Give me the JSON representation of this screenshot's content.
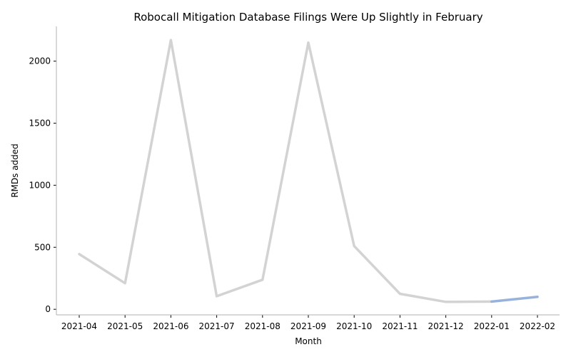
{
  "chart_data": {
    "type": "line",
    "title": "Robocall Mitigation Database Filings Were Up Slightly in February",
    "xlabel": "Month",
    "ylabel": "RMDs added",
    "categories": [
      "2021-04",
      "2021-05",
      "2021-06",
      "2021-07",
      "2021-08",
      "2021-09",
      "2021-10",
      "2021-11",
      "2021-12",
      "2022-01",
      "2022-02"
    ],
    "yticks": [
      0,
      500,
      1000,
      1500,
      2000
    ],
    "ylim": [
      -45,
      2280
    ],
    "grid": false,
    "series": [
      {
        "color": "#d3d3d3",
        "values": [
          445,
          210,
          2170,
          105,
          238,
          2150,
          510,
          125,
          60,
          62,
          null
        ]
      },
      {
        "color": "#97b3dc",
        "values": [
          null,
          null,
          null,
          null,
          null,
          null,
          null,
          null,
          null,
          62,
          100
        ]
      }
    ]
  }
}
